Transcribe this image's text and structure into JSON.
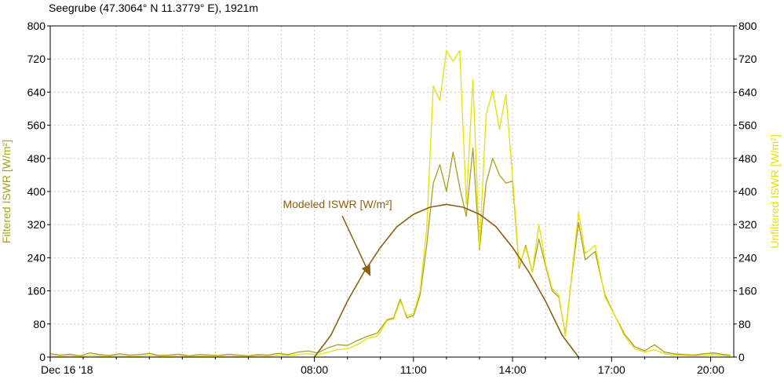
{
  "chart_data": {
    "type": "line",
    "title": "Seegrube (47.3064° N 11.3779° E), 1921m",
    "ylabel_left": "Filtered ISWR [W/m²]",
    "ylabel_right": "Unfiltered ISWR [W/m²]",
    "ylim": [
      0,
      800
    ],
    "yticks": [
      0,
      80,
      160,
      240,
      320,
      400,
      480,
      560,
      640,
      720,
      800
    ],
    "xlim_hours": [
      0,
      20.7
    ],
    "x_unit": "hours since Dec 16 '18 00:00",
    "xticks": [
      {
        "h": 0,
        "label": "Dec 16 '18"
      },
      {
        "h": 8,
        "label": "08:00"
      },
      {
        "h": 11,
        "label": "11:00"
      },
      {
        "h": 14,
        "label": "14:00"
      },
      {
        "h": 17,
        "label": "17:00"
      },
      {
        "h": 20,
        "label": "20:00"
      }
    ],
    "grid": true,
    "annotation": {
      "text": "Modeled ISWR [W/m²]",
      "target": [
        9.7,
        195
      ],
      "text_at": [
        8.7,
        360
      ]
    },
    "series": [
      {
        "name": "Filtered ISWR [W/m²]",
        "color": "#a8a020",
        "x": [
          0,
          0.3,
          0.6,
          0.9,
          1.2,
          1.5,
          1.8,
          2.1,
          2.4,
          2.7,
          3.0,
          3.3,
          3.6,
          3.9,
          4.2,
          4.5,
          4.8,
          5.1,
          5.4,
          5.7,
          6.0,
          6.3,
          6.6,
          6.9,
          7.2,
          7.5,
          7.8,
          8.1,
          8.4,
          8.7,
          9.0,
          9.3,
          9.6,
          9.9,
          10.2,
          10.4,
          10.6,
          10.8,
          11.0,
          11.2,
          11.4,
          11.6,
          11.8,
          12.0,
          12.2,
          12.4,
          12.6,
          12.8,
          13.0,
          13.2,
          13.4,
          13.6,
          13.8,
          14.0,
          14.2,
          14.4,
          14.6,
          14.8,
          15.0,
          15.2,
          15.4,
          15.6,
          15.8,
          16.0,
          16.2,
          16.5,
          16.8,
          17.1,
          17.4,
          17.7,
          18.0,
          18.3,
          18.6,
          18.9,
          19.2,
          19.5,
          19.8,
          20.1,
          20.4,
          20.6
        ],
        "y": [
          8,
          5,
          7,
          3,
          10,
          6,
          4,
          8,
          5,
          6,
          9,
          4,
          5,
          7,
          3,
          6,
          5,
          4,
          7,
          5,
          3,
          6,
          5,
          9,
          6,
          12,
          15,
          10,
          22,
          30,
          28,
          40,
          50,
          58,
          90,
          95,
          140,
          95,
          100,
          150,
          270,
          420,
          465,
          400,
          495,
          410,
          340,
          505,
          260,
          420,
          480,
          440,
          420,
          425,
          215,
          270,
          205,
          285,
          220,
          160,
          145,
          55,
          200,
          325,
          235,
          255,
          150,
          100,
          55,
          25,
          15,
          30,
          12,
          8,
          6,
          5,
          8,
          10,
          6,
          5
        ]
      },
      {
        "name": "Unfiltered ISWR [W/m²]",
        "color": "#e8e000",
        "x": [
          0,
          0.3,
          0.6,
          0.9,
          1.2,
          1.5,
          1.8,
          2.1,
          2.4,
          2.7,
          3.0,
          3.3,
          3.6,
          3.9,
          4.2,
          4.5,
          4.8,
          5.1,
          5.4,
          5.7,
          6.0,
          6.3,
          6.6,
          6.9,
          7.2,
          7.5,
          7.8,
          8.1,
          8.4,
          8.7,
          9.0,
          9.3,
          9.6,
          9.9,
          10.2,
          10.4,
          10.6,
          10.8,
          11.0,
          11.2,
          11.4,
          11.6,
          11.8,
          12.0,
          12.2,
          12.4,
          12.6,
          12.8,
          13.0,
          13.2,
          13.4,
          13.6,
          13.8,
          14.0,
          14.2,
          14.4,
          14.6,
          14.8,
          15.0,
          15.2,
          15.4,
          15.6,
          15.8,
          16.0,
          16.2,
          16.5,
          16.8,
          17.1,
          17.4,
          17.7,
          18.0,
          18.3,
          18.6,
          18.9,
          19.2,
          19.5,
          19.8,
          20.1,
          20.4,
          20.6
        ],
        "y": [
          3,
          2,
          3,
          1,
          4,
          2,
          2,
          3,
          2,
          2,
          4,
          2,
          2,
          3,
          1,
          2,
          2,
          2,
          3,
          2,
          1,
          3,
          2,
          4,
          3,
          6,
          8,
          5,
          12,
          18,
          20,
          30,
          45,
          50,
          88,
          92,
          135,
          100,
          105,
          160,
          310,
          655,
          620,
          740,
          715,
          740,
          370,
          670,
          265,
          585,
          645,
          550,
          635,
          435,
          220,
          265,
          205,
          320,
          225,
          165,
          150,
          50,
          205,
          350,
          250,
          270,
          145,
          100,
          50,
          20,
          12,
          18,
          8,
          5,
          4,
          3,
          4,
          6,
          3,
          2
        ]
      },
      {
        "name": "Modeled ISWR [W/m²]",
        "color": "#8b6010",
        "x": [
          8.0,
          8.5,
          9.0,
          9.5,
          10.0,
          10.5,
          11.0,
          11.5,
          12.0,
          12.5,
          13.0,
          13.5,
          14.0,
          14.5,
          15.0,
          15.5,
          16.0
        ],
        "y": [
          0,
          53,
          135,
          205,
          265,
          315,
          345,
          362,
          369,
          362,
          345,
          315,
          265,
          205,
          135,
          53,
          0
        ]
      }
    ]
  }
}
